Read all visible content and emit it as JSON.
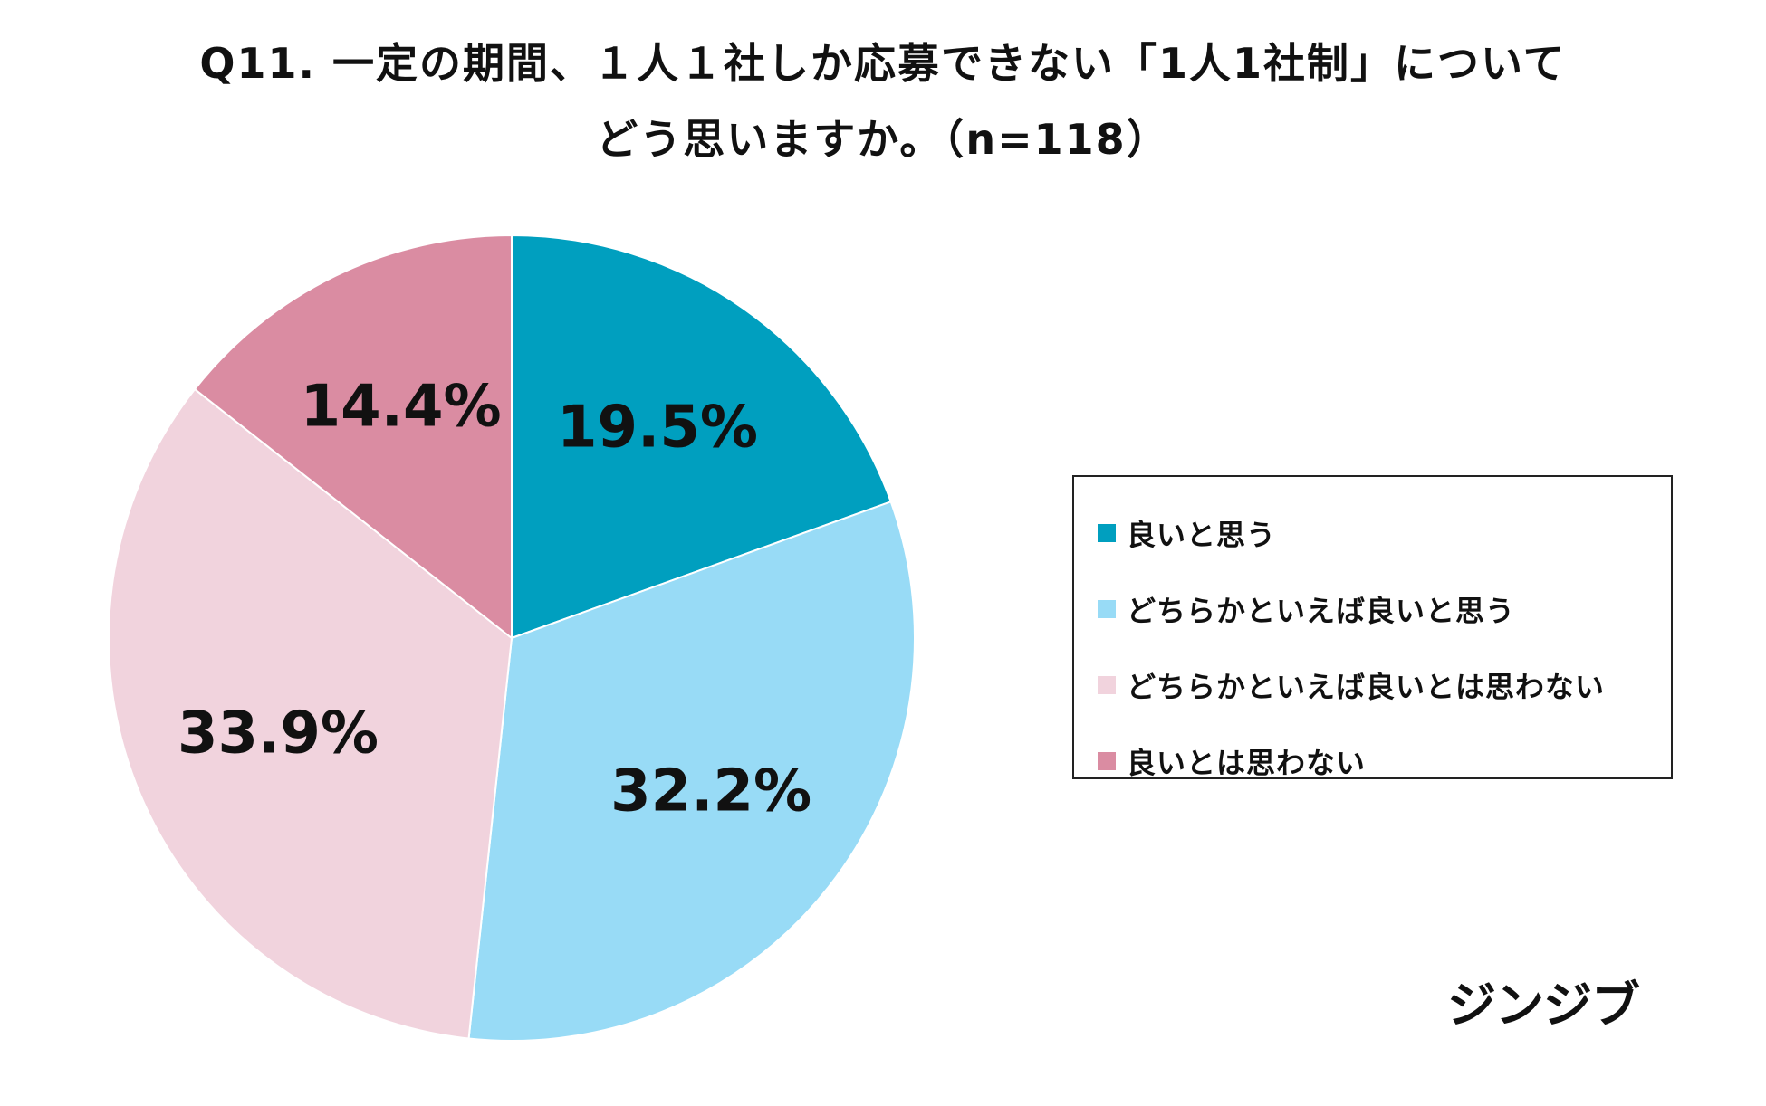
{
  "title": {
    "line1": "Q11. 一定の期間、１人１社しか応募できない「1人1社制」について",
    "line2": "どう思いますか。（n=118）"
  },
  "chart_data": {
    "type": "pie",
    "title": "Q11. 一定の期間、１人１社しか応募できない「1人1社制」について どう思いますか。（n=118）",
    "unit": "%",
    "start": "12 o'clock",
    "direction": "clockwise",
    "slices": [
      {
        "label": "良いと思う",
        "value": 19.5,
        "value_label": "19.5%",
        "color": "#009fbf"
      },
      {
        "label": "どちらかといえば良いと思う",
        "value": 32.2,
        "value_label": "32.2%",
        "color": "#98dbf6"
      },
      {
        "label": "どちらかといえば良いとは思わない",
        "value": 33.9,
        "value_label": "33.9%",
        "color": "#f1d3dd"
      },
      {
        "label": "良いとは思わない",
        "value": 14.4,
        "value_label": "14.4%",
        "color": "#da8ca2"
      }
    ],
    "legend": {
      "position": "right"
    }
  },
  "legend": {
    "items": [
      {
        "label": "良いと思う",
        "color": "#009fbf"
      },
      {
        "label": "どちらかといえば良いと思う",
        "color": "#98dbf6"
      },
      {
        "label": "どちらかといえば良いとは思わない",
        "color": "#f1d3dd"
      },
      {
        "label": "良いとは思わない",
        "color": "#da8ca2"
      }
    ]
  },
  "brand": {
    "name": "ジンジブ"
  }
}
